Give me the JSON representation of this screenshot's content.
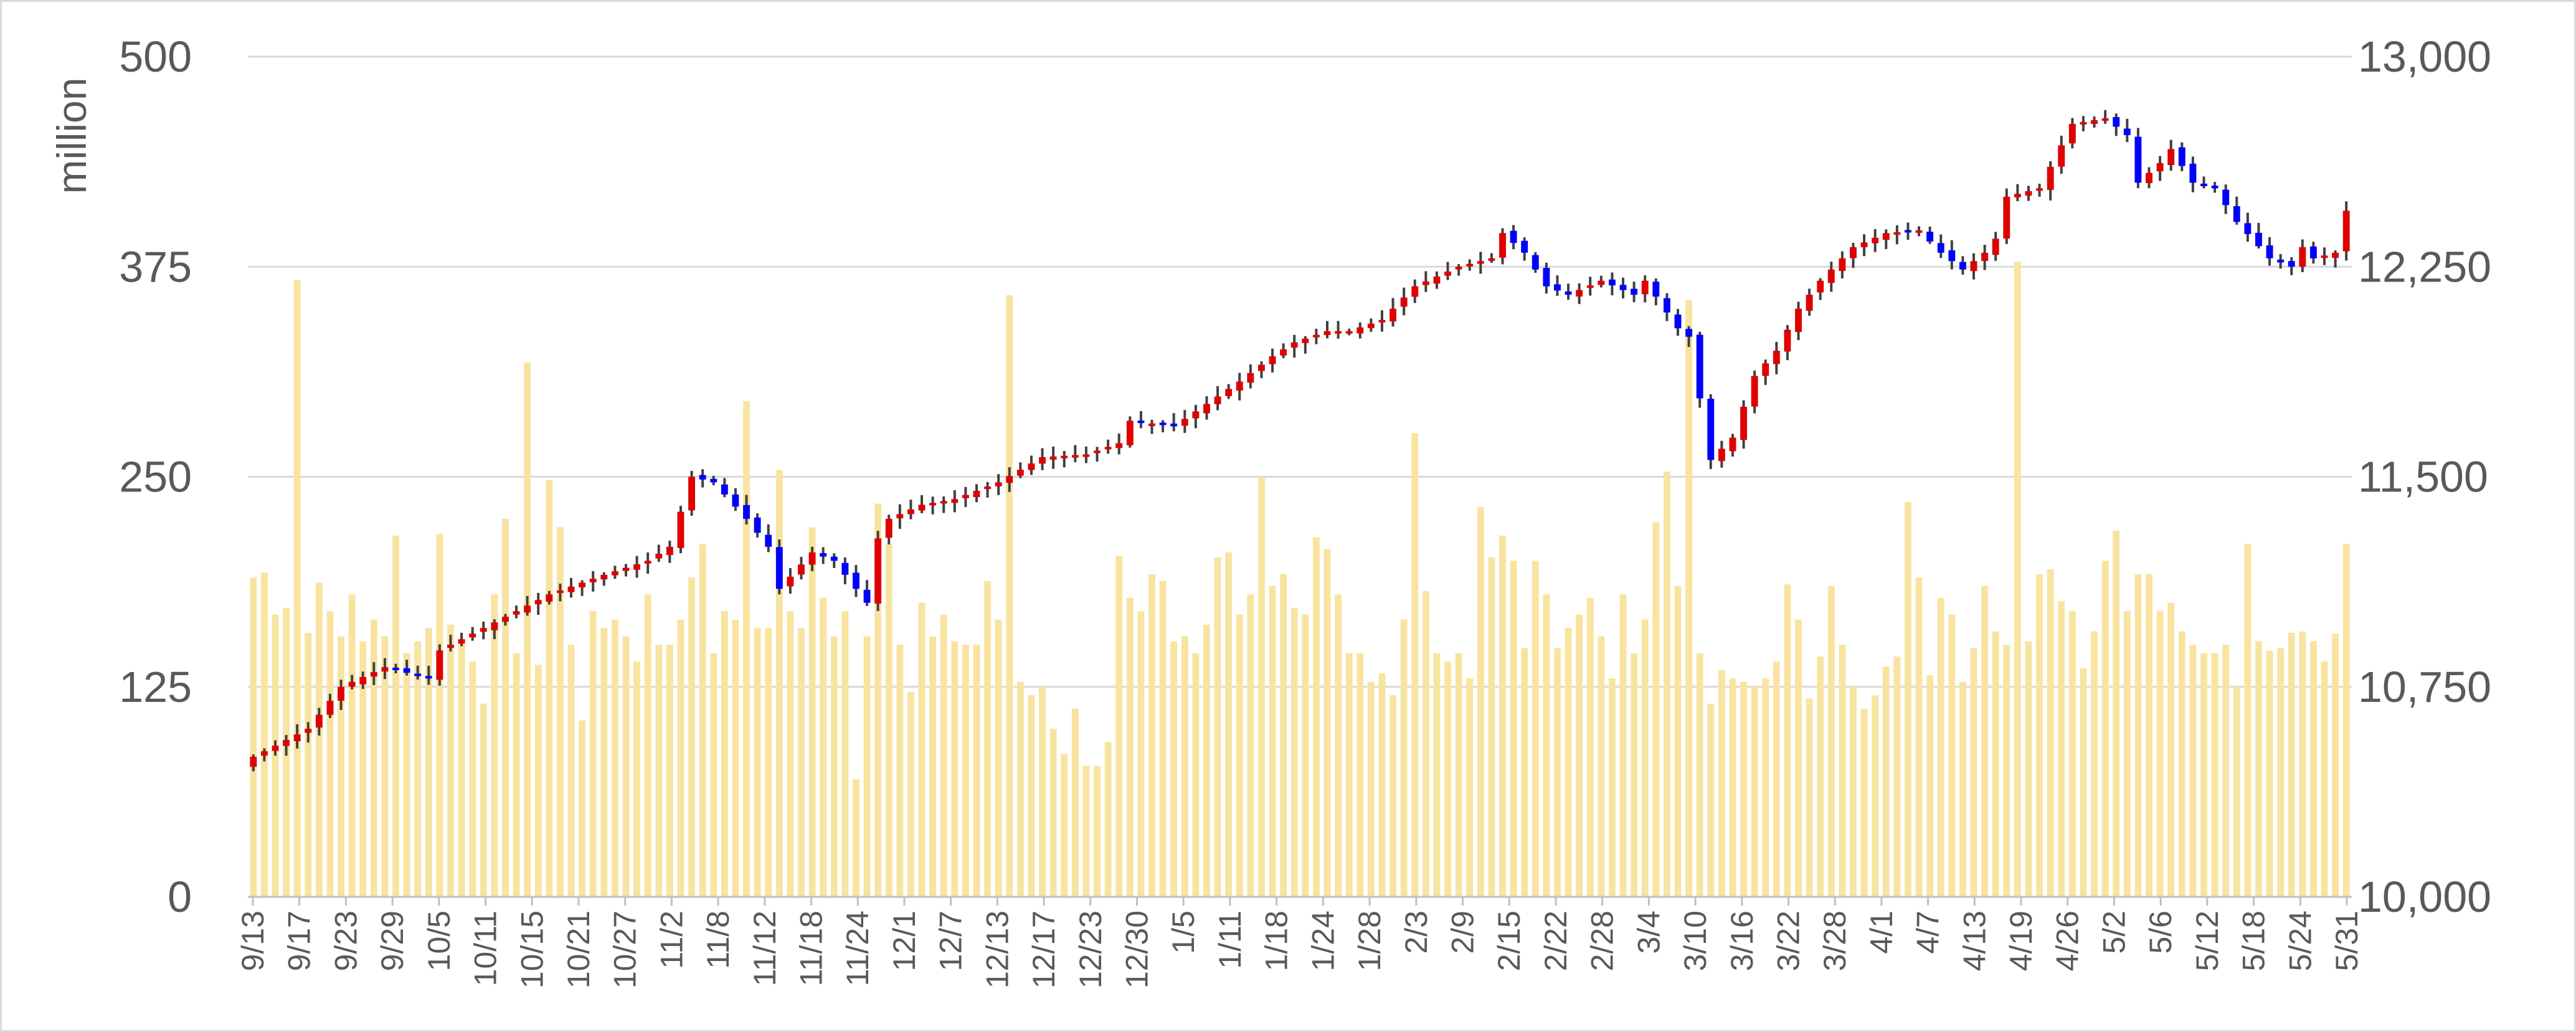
{
  "chart_data": {
    "type": "candlestick+bar",
    "y_left_label": "million",
    "y_left_range": [
      0,
      500
    ],
    "y_left_ticks": [
      "0",
      "125",
      "250",
      "375",
      "500"
    ],
    "y_right_range": [
      10000,
      13000
    ],
    "y_right_ticks": [
      "10,000",
      "10,750",
      "11,500",
      "12,250",
      "13,000"
    ],
    "x_tick_labels": [
      "9/13",
      "9/17",
      "9/23",
      "9/29",
      "10/5",
      "10/11",
      "10/15",
      "10/21",
      "10/27",
      "11/2",
      "11/8",
      "11/12",
      "11/18",
      "11/24",
      "12/1",
      "12/7",
      "12/13",
      "12/17",
      "12/23",
      "12/30",
      "1/5",
      "1/11",
      "1/18",
      "1/24",
      "1/28",
      "2/3",
      "2/9",
      "2/15",
      "2/22",
      "2/28",
      "3/4",
      "3/10",
      "3/16",
      "3/22",
      "3/28",
      "4/1",
      "4/7",
      "4/13",
      "4/19",
      "4/26",
      "5/2",
      "5/6",
      "5/12",
      "5/18",
      "5/24",
      "5/31"
    ],
    "grid": true,
    "colors": {
      "up": "#e00000",
      "down": "#0000ff",
      "volume": "#f8e4a0",
      "wick": "#404040",
      "grid": "#d9d9d9",
      "text": "#595959"
    },
    "volume_anchors": [
      [
        0,
        190
      ],
      [
        1,
        193
      ],
      [
        2,
        168
      ],
      [
        3,
        172
      ],
      [
        4,
        367
      ],
      [
        5,
        157
      ],
      [
        6,
        187
      ],
      [
        7,
        170
      ],
      [
        8,
        155
      ],
      [
        9,
        180
      ],
      [
        10,
        152
      ],
      [
        11,
        165
      ],
      [
        12,
        155
      ],
      [
        13,
        215
      ],
      [
        14,
        145
      ],
      [
        15,
        152
      ],
      [
        16,
        160
      ],
      [
        17,
        216
      ],
      [
        18,
        162
      ],
      [
        19,
        150
      ],
      [
        20,
        140
      ],
      [
        21,
        115
      ],
      [
        22,
        180
      ],
      [
        23,
        225
      ],
      [
        24,
        145
      ],
      [
        25,
        318
      ],
      [
        26,
        138
      ],
      [
        27,
        248
      ],
      [
        28,
        220
      ],
      [
        29,
        150
      ],
      [
        30,
        105
      ],
      [
        31,
        170
      ],
      [
        32,
        160
      ],
      [
        33,
        165
      ],
      [
        34,
        155
      ],
      [
        35,
        140
      ],
      [
        36,
        180
      ],
      [
        37,
        150
      ],
      [
        38,
        150
      ],
      [
        39,
        165
      ],
      [
        40,
        190
      ],
      [
        41,
        210
      ],
      [
        42,
        145
      ],
      [
        43,
        170
      ],
      [
        44,
        165
      ],
      [
        45,
        295
      ],
      [
        46,
        160
      ],
      [
        47,
        160
      ],
      [
        48,
        254
      ],
      [
        49,
        170
      ],
      [
        50,
        160
      ],
      [
        51,
        220
      ],
      [
        52,
        178
      ],
      [
        53,
        155
      ],
      [
        54,
        170
      ],
      [
        55,
        70
      ],
      [
        56,
        155
      ],
      [
        57,
        234
      ],
      [
        58,
        210
      ],
      [
        59,
        150
      ],
      [
        60,
        122
      ],
      [
        61,
        175
      ],
      [
        62,
        155
      ],
      [
        63,
        168
      ],
      [
        64,
        152
      ],
      [
        65,
        150
      ],
      [
        66,
        150
      ],
      [
        67,
        188
      ],
      [
        68,
        165
      ],
      [
        69,
        358
      ],
      [
        70,
        128
      ],
      [
        71,
        120
      ],
      [
        72,
        125
      ],
      [
        73,
        100
      ],
      [
        74,
        85
      ],
      [
        75,
        112
      ],
      [
        76,
        78
      ],
      [
        77,
        78
      ],
      [
        78,
        92
      ],
      [
        79,
        203
      ],
      [
        80,
        178
      ],
      [
        81,
        170
      ],
      [
        82,
        192
      ],
      [
        83,
        188
      ],
      [
        84,
        152
      ],
      [
        85,
        155
      ],
      [
        86,
        145
      ],
      [
        87,
        162
      ],
      [
        88,
        202
      ],
      [
        89,
        205
      ],
      [
        90,
        168
      ],
      [
        91,
        180
      ],
      [
        92,
        250
      ],
      [
        93,
        185
      ],
      [
        94,
        192
      ],
      [
        95,
        172
      ],
      [
        96,
        168
      ],
      [
        97,
        214
      ],
      [
        98,
        207
      ],
      [
        99,
        180
      ],
      [
        100,
        145
      ],
      [
        101,
        145
      ],
      [
        102,
        128
      ],
      [
        103,
        133
      ],
      [
        104,
        120
      ],
      [
        105,
        165
      ],
      [
        106,
        276
      ],
      [
        107,
        182
      ],
      [
        108,
        145
      ],
      [
        109,
        140
      ],
      [
        110,
        145
      ],
      [
        111,
        130
      ],
      [
        112,
        232
      ],
      [
        113,
        202
      ],
      [
        114,
        215
      ],
      [
        115,
        200
      ],
      [
        116,
        148
      ],
      [
        117,
        200
      ],
      [
        118,
        180
      ],
      [
        119,
        148
      ],
      [
        120,
        160
      ],
      [
        121,
        168
      ],
      [
        122,
        178
      ],
      [
        123,
        155
      ],
      [
        124,
        130
      ],
      [
        125,
        180
      ],
      [
        126,
        145
      ],
      [
        127,
        165
      ],
      [
        128,
        223
      ],
      [
        129,
        253
      ],
      [
        130,
        185
      ],
      [
        131,
        355
      ],
      [
        132,
        145
      ],
      [
        133,
        115
      ],
      [
        134,
        135
      ],
      [
        135,
        130
      ],
      [
        136,
        128
      ],
      [
        137,
        125
      ],
      [
        138,
        130
      ],
      [
        139,
        140
      ],
      [
        140,
        186
      ],
      [
        141,
        165
      ],
      [
        142,
        118
      ],
      [
        143,
        143
      ],
      [
        144,
        185
      ],
      [
        145,
        150
      ],
      [
        146,
        125
      ],
      [
        147,
        112
      ],
      [
        148,
        120
      ],
      [
        149,
        137
      ],
      [
        150,
        143
      ],
      [
        151,
        235
      ],
      [
        152,
        190
      ],
      [
        153,
        132
      ],
      [
        154,
        178
      ],
      [
        155,
        168
      ],
      [
        156,
        128
      ],
      [
        157,
        148
      ],
      [
        158,
        185
      ],
      [
        159,
        158
      ],
      [
        160,
        150
      ],
      [
        161,
        378
      ],
      [
        162,
        152
      ],
      [
        163,
        192
      ],
      [
        164,
        195
      ],
      [
        165,
        176
      ],
      [
        166,
        170
      ],
      [
        167,
        136
      ],
      [
        168,
        158
      ],
      [
        169,
        200
      ],
      [
        170,
        218
      ],
      [
        171,
        170
      ],
      [
        172,
        192
      ],
      [
        173,
        192
      ],
      [
        174,
        170
      ],
      [
        175,
        175
      ],
      [
        176,
        158
      ],
      [
        177,
        150
      ],
      [
        178,
        145
      ],
      [
        179,
        145
      ],
      [
        180,
        150
      ],
      [
        181,
        125
      ],
      [
        182,
        210
      ]
    ],
    "price_anchors": [
      [
        0,
        10500
      ],
      [
        5,
        10600
      ],
      [
        8,
        10750
      ],
      [
        12,
        10820
      ],
      [
        16,
        10780
      ],
      [
        17,
        10880
      ],
      [
        22,
        10980
      ],
      [
        27,
        11080
      ],
      [
        32,
        11150
      ],
      [
        36,
        11200
      ],
      [
        38,
        11250
      ],
      [
        40,
        11500
      ],
      [
        42,
        11480
      ],
      [
        45,
        11350
      ],
      [
        47,
        11250
      ],
      [
        48,
        11100
      ],
      [
        51,
        11230
      ],
      [
        53,
        11200
      ],
      [
        55,
        11100
      ],
      [
        56,
        11050
      ],
      [
        57,
        11280
      ],
      [
        58,
        11350
      ],
      [
        61,
        11400
      ],
      [
        64,
        11420
      ],
      [
        68,
        11480
      ],
      [
        72,
        11570
      ],
      [
        76,
        11580
      ],
      [
        79,
        11620
      ],
      [
        80,
        11700
      ],
      [
        84,
        11680
      ],
      [
        87,
        11760
      ],
      [
        90,
        11840
      ],
      [
        93,
        11930
      ],
      [
        95,
        11980
      ],
      [
        98,
        12020
      ],
      [
        100,
        12020
      ],
      [
        103,
        12060
      ],
      [
        106,
        12180
      ],
      [
        110,
        12250
      ],
      [
        113,
        12280
      ],
      [
        114,
        12370
      ],
      [
        116,
        12300
      ],
      [
        118,
        12180
      ],
      [
        120,
        12150
      ],
      [
        123,
        12200
      ],
      [
        126,
        12150
      ],
      [
        127,
        12200
      ],
      [
        130,
        12030
      ],
      [
        131,
        12000
      ],
      [
        133,
        11560
      ],
      [
        135,
        11640
      ],
      [
        137,
        11860
      ],
      [
        139,
        11950
      ],
      [
        141,
        12100
      ],
      [
        143,
        12200
      ],
      [
        146,
        12320
      ],
      [
        149,
        12370
      ],
      [
        152,
        12380
      ],
      [
        154,
        12300
      ],
      [
        156,
        12240
      ],
      [
        158,
        12300
      ],
      [
        159,
        12350
      ],
      [
        160,
        12500
      ],
      [
        163,
        12530
      ],
      [
        166,
        12760
      ],
      [
        169,
        12780
      ],
      [
        171,
        12720
      ],
      [
        172,
        12550
      ],
      [
        174,
        12620
      ],
      [
        175,
        12670
      ],
      [
        177,
        12550
      ],
      [
        179,
        12530
      ],
      [
        181,
        12410
      ],
      [
        184,
        12280
      ],
      [
        186,
        12250
      ],
      [
        187,
        12320
      ],
      [
        188,
        12280
      ],
      [
        190,
        12300
      ],
      [
        191,
        12450
      ]
    ]
  }
}
